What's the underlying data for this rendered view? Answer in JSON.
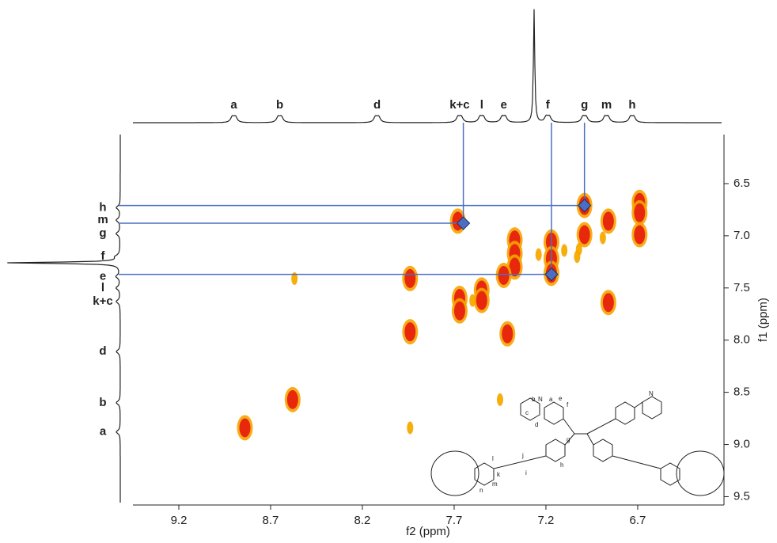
{
  "chart_data": {
    "type": "nmr2d",
    "x_label": "f2 (ppm)",
    "y_label": "f1 (ppm)",
    "xlim": [
      9.45,
      6.23
    ],
    "ylim": [
      6.03,
      9.58
    ],
    "xticks": [
      9.2,
      8.7,
      8.2,
      7.7,
      7.2,
      6.7
    ],
    "yticks": [
      6.5,
      {
        "value": 7,
        "label": "7.0"
      },
      7.5,
      {
        "value": 8,
        "label": "8.0"
      },
      8.5,
      {
        "value": 9,
        "label": "9.0"
      },
      9.5
    ],
    "series": [
      {
        "color": "#e8280c",
        "x": [
          6.69,
          6.69,
          6.69,
          6.99,
          6.99,
          6.86,
          6.86,
          7.17,
          7.17,
          7.17,
          7.37,
          7.37,
          7.37,
          7.43,
          7.55,
          7.55,
          7.67,
          7.67,
          7.94,
          7.94,
          7.41,
          7.68,
          8.58,
          8.84
        ],
        "y": [
          6.68,
          6.78,
          6.99,
          6.71,
          6.99,
          6.86,
          7.64,
          7.06,
          7.22,
          7.36,
          7.04,
          7.17,
          7.3,
          7.38,
          7.52,
          7.62,
          7.6,
          7.72,
          7.41,
          7.92,
          7.94,
          6.86,
          8.57,
          8.84
        ]
      },
      {
        "color": "#f5b000",
        "x": [
          8.57,
          7.45,
          7.94,
          7.02,
          7.1,
          7.24,
          6.89,
          7.6,
          7.03
        ],
        "y": [
          7.41,
          8.57,
          8.84,
          7.13,
          7.14,
          7.18,
          7.02,
          7.62,
          7.2
        ]
      }
    ],
    "top_labels": {
      "labels": [
        "a",
        "b",
        "d",
        "k+c",
        "l",
        "e",
        "f",
        "g",
        "m",
        "h"
      ],
      "x": [
        8.9,
        8.65,
        8.12,
        7.67,
        7.55,
        7.43,
        7.19,
        6.99,
        6.87,
        6.73
      ]
    },
    "left_labels": {
      "labels": [
        "h",
        "m",
        "g",
        "f",
        "e",
        "l",
        "k+c",
        "d",
        "b",
        "a"
      ],
      "y": [
        6.73,
        6.85,
        6.98,
        7.2,
        7.39,
        7.5,
        7.63,
        8.11,
        8.6,
        8.88
      ]
    },
    "correlations": {
      "color": "#4a6fc2",
      "x": [
        6.99,
        7.65,
        7.17
      ],
      "y": [
        6.71,
        6.88,
        7.37
      ]
    },
    "structure_labels": [
      "b",
      "N",
      "a",
      "c",
      "d",
      "e",
      "f",
      "k",
      "l",
      "m",
      "n",
      "j",
      "i",
      "h",
      "g",
      "N"
    ]
  }
}
